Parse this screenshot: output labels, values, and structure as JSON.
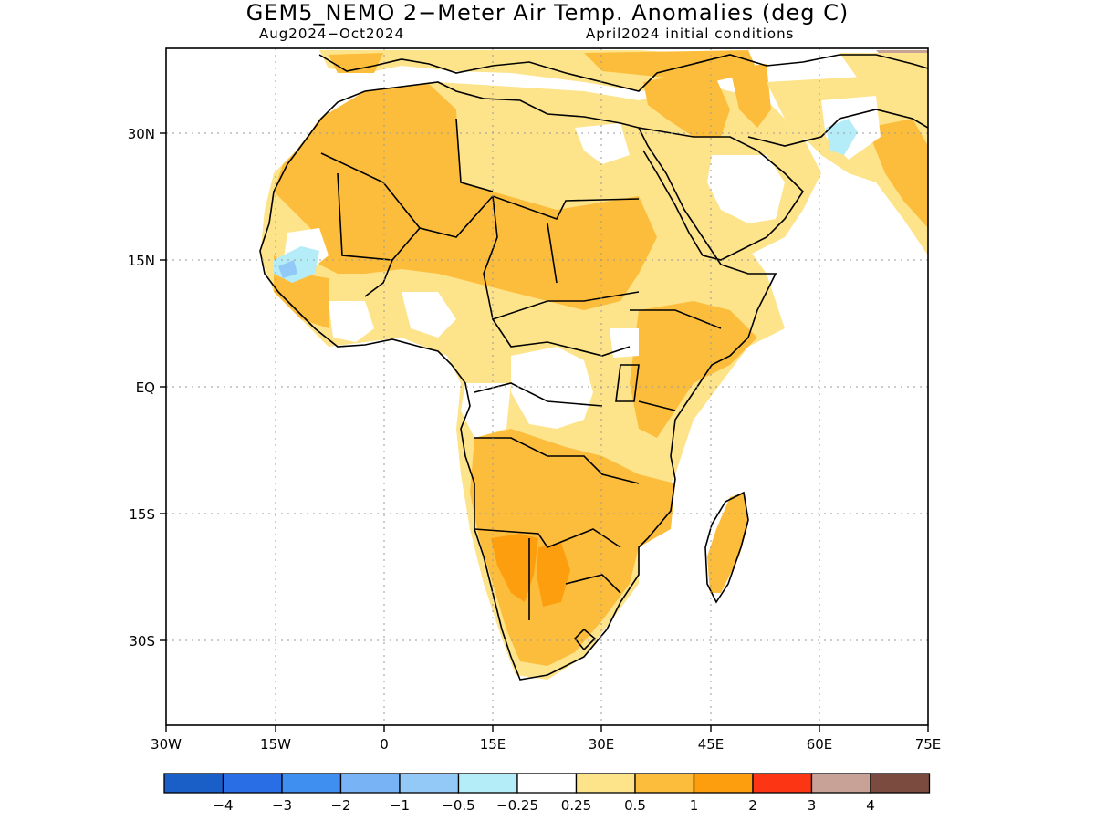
{
  "header": {
    "title": "GEM5_NEMO 2−Meter Air Temp. Anomalies (deg C)",
    "period": "Aug2024−Oct2024",
    "init": "April2024 initial conditions"
  },
  "map": {
    "lat_labels": [
      "30N",
      "15N",
      "EQ",
      "15S",
      "30S"
    ],
    "lon_labels": [
      "30W",
      "15W",
      "0",
      "15E",
      "30E",
      "45E",
      "60E",
      "75E"
    ],
    "grid": "dotted",
    "region": "Africa and Middle East"
  },
  "legend": {
    "colors": [
      "#1a5fc8",
      "#2a6ee6",
      "#3f8ff0",
      "#78b4f5",
      "#93c9f7",
      "#b4ecf7",
      "#ffffff",
      "#fde38a",
      "#fdbd3c",
      "#fd9e0f",
      "#fc3515",
      "#c9a297",
      "#7b4b3f"
    ],
    "labels": [
      "−4",
      "−3",
      "−2",
      "−1",
      "−0.5",
      "−0.25",
      "0.25",
      "0.5",
      "1",
      "2",
      "3",
      "4"
    ]
  }
}
